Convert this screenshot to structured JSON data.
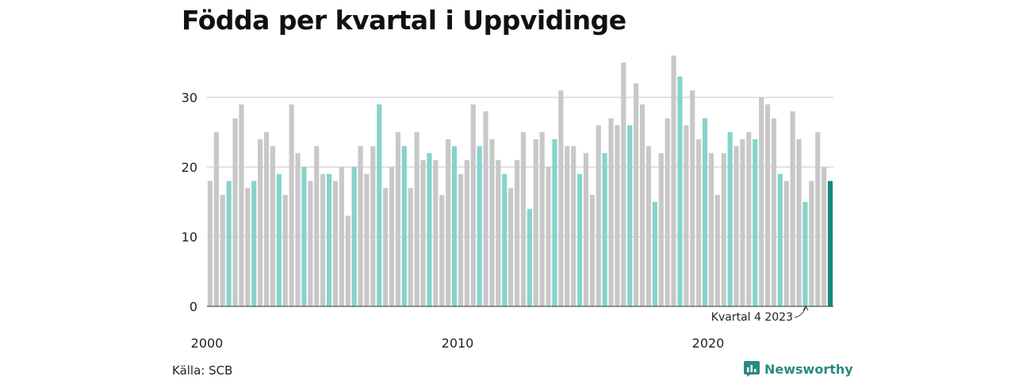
{
  "title": "Födda per kvartal i Uppvidinge",
  "source": "Källa: SCB",
  "brand": "Newsworthy",
  "annotation": "Kvartal 4 2023",
  "colors": {
    "bar": "#c8c8c8",
    "q4": "#86d3cc",
    "latest": "#17887c",
    "grid": "#d9d9d9",
    "brand": "#2a8a80"
  },
  "chart_data": {
    "type": "bar",
    "title": "Födda per kvartal i Uppvidinge",
    "xlabel": "",
    "ylabel": "",
    "ylim": [
      0,
      37
    ],
    "yticks": [
      0,
      10,
      20,
      30
    ],
    "xticks": [
      "2000",
      "2010",
      "2020"
    ],
    "grid": true,
    "start": "2000 Q1",
    "values": [
      18,
      25,
      16,
      18,
      27,
      29,
      17,
      18,
      24,
      25,
      23,
      19,
      16,
      29,
      22,
      20,
      18,
      23,
      19,
      19,
      18,
      20,
      13,
      20,
      23,
      19,
      23,
      29,
      17,
      20,
      25,
      23,
      17,
      25,
      21,
      22,
      21,
      16,
      24,
      23,
      19,
      21,
      29,
      23,
      28,
      24,
      21,
      19,
      17,
      21,
      25,
      14,
      24,
      25,
      20,
      24,
      31,
      23,
      23,
      19,
      22,
      16,
      26,
      22,
      27,
      26,
      35,
      26,
      32,
      29,
      23,
      15,
      22,
      27,
      36,
      33,
      26,
      31,
      24,
      27,
      22,
      16,
      22,
      25,
      23,
      24,
      25,
      24,
      30,
      29,
      27,
      19,
      18,
      28,
      24,
      15,
      18,
      25,
      20,
      18
    ]
  }
}
